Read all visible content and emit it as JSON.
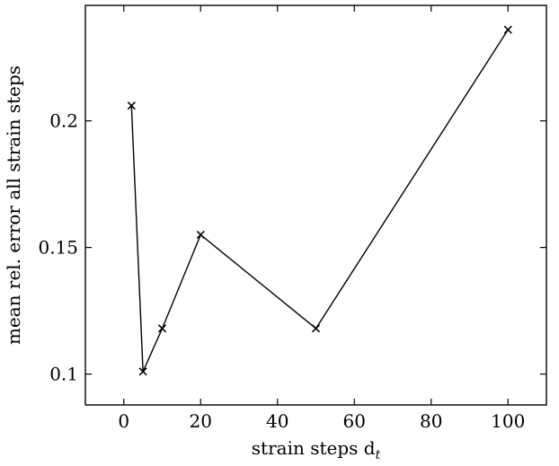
{
  "chart_data": {
    "type": "line",
    "title": "",
    "xlabel": "strain steps d",
    "xlabel_subscript": "t",
    "ylabel": "mean rel. error all strain steps",
    "xlim": [
      -10,
      110
    ],
    "ylim": [
      0.0878,
      0.2456
    ],
    "xticks": [
      0,
      20,
      40,
      60,
      80,
      100
    ],
    "xtick_labels": [
      "0",
      "20",
      "40",
      "60",
      "80",
      "100"
    ],
    "yticks": [
      0.1,
      0.15,
      0.2
    ],
    "ytick_labels": [
      "0.1",
      "0.15",
      "0.2"
    ],
    "grid": false,
    "legend": "none",
    "marker": "x",
    "colors": {
      "line": "#000000",
      "axes": "#000000",
      "background": "#ffffff"
    },
    "series": [
      {
        "x": [
          2,
          5,
          10,
          20,
          50,
          100
        ],
        "y": [
          0.206,
          0.101,
          0.118,
          0.155,
          0.118,
          0.236
        ]
      }
    ]
  }
}
